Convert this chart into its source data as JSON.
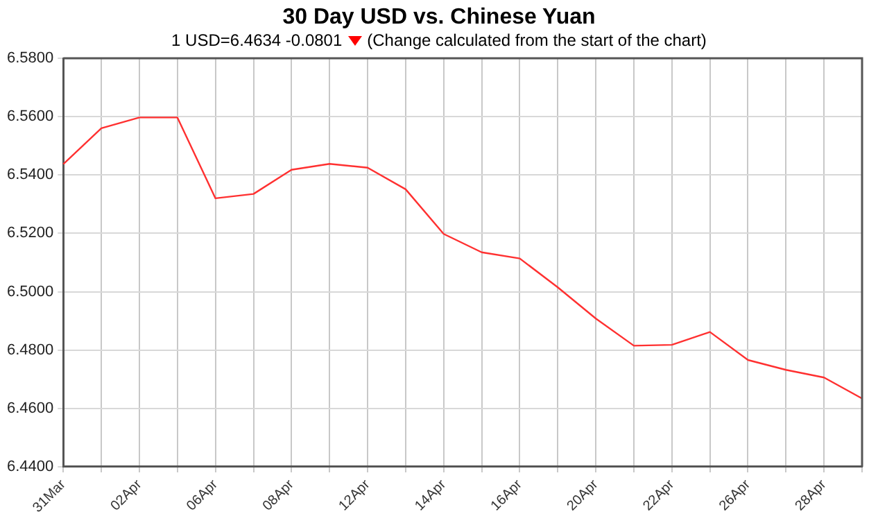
{
  "chart_data": {
    "type": "line",
    "title": "30 Day USD vs. Chinese Yuan",
    "subtitle": "1 USD=6.4634  -0.0801",
    "annotations": [
      "(Change calculated from the start of the chart)"
    ],
    "categories": [
      "31Mar",
      null,
      "02Apr",
      null,
      "06Apr",
      null,
      "08Apr",
      null,
      "12Apr",
      null,
      "14Apr",
      null,
      "16Apr",
      null,
      "20Apr",
      null,
      "22Apr",
      null,
      "26Apr",
      null,
      "28Apr",
      null
    ],
    "series": [
      {
        "color": "#ff3030",
        "values": [
          6.5437,
          6.556,
          6.5597,
          6.5597,
          6.532,
          6.5335,
          6.5418,
          6.5438,
          6.5425,
          6.5351,
          6.5198,
          6.5135,
          6.5114,
          6.5015,
          6.4908,
          6.4815,
          6.4818,
          6.4862,
          6.4766,
          6.4732,
          6.4706,
          6.4634
        ]
      }
    ],
    "ylim": [
      6.44,
      6.58
    ],
    "yticks": [
      {
        "value": 6.44,
        "label": "6.4400"
      },
      {
        "value": 6.46,
        "label": "6.4600"
      },
      {
        "value": 6.48,
        "label": "6.4800"
      },
      {
        "value": 6.5,
        "label": "6.5000"
      },
      {
        "value": 6.52,
        "label": "6.5200"
      },
      {
        "value": 6.54,
        "label": "6.5400"
      },
      {
        "value": 6.56,
        "label": "6.5600"
      },
      {
        "value": 6.58,
        "label": "6.5800"
      }
    ],
    "grid": true,
    "legend": false,
    "marker": "none",
    "line_style": "solid"
  }
}
